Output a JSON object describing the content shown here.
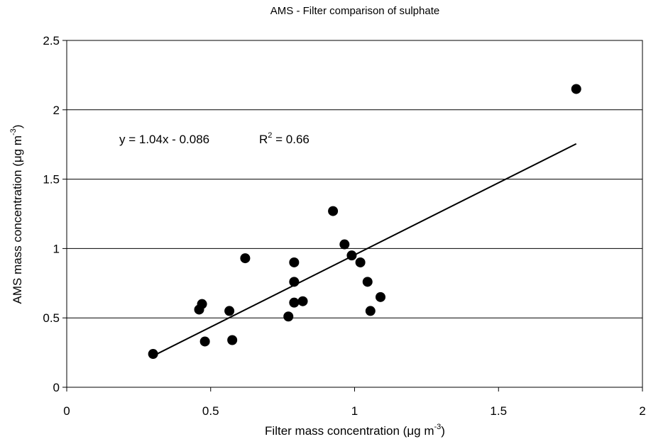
{
  "chart_data": {
    "type": "scatter",
    "title": "AMS - Filter  comparison of sulphate",
    "xlabel": {
      "prefix": "Filter mass concentration (",
      "unit": "μg m",
      "exponent": "-3",
      "suffix": ")"
    },
    "ylabel": {
      "prefix": "AMS mass concentration (",
      "unit": "μg m",
      "exponent": "-3",
      "suffix": ")"
    },
    "xlim": [
      0,
      2
    ],
    "ylim": [
      0,
      2.5
    ],
    "x_ticks": [
      0,
      0.5,
      1,
      1.5,
      2
    ],
    "x_tick_labels": [
      "0",
      "0.5",
      "1",
      "1.5",
      "2"
    ],
    "y_ticks": [
      0,
      0.5,
      1,
      1.5,
      2,
      2.5
    ],
    "y_tick_labels": [
      "0",
      "0.5",
      "1",
      "1.5",
      "2",
      "2.5"
    ],
    "grid": "horizontal",
    "points": [
      {
        "x": 0.3,
        "y": 0.24
      },
      {
        "x": 0.46,
        "y": 0.56
      },
      {
        "x": 0.47,
        "y": 0.6
      },
      {
        "x": 0.48,
        "y": 0.33
      },
      {
        "x": 0.565,
        "y": 0.55
      },
      {
        "x": 0.575,
        "y": 0.34
      },
      {
        "x": 0.62,
        "y": 0.93
      },
      {
        "x": 0.77,
        "y": 0.51
      },
      {
        "x": 0.79,
        "y": 0.9
      },
      {
        "x": 0.79,
        "y": 0.76
      },
      {
        "x": 0.79,
        "y": 0.61
      },
      {
        "x": 0.82,
        "y": 0.62
      },
      {
        "x": 0.925,
        "y": 1.27
      },
      {
        "x": 0.965,
        "y": 1.03
      },
      {
        "x": 0.99,
        "y": 0.95
      },
      {
        "x": 1.02,
        "y": 0.9
      },
      {
        "x": 1.045,
        "y": 0.76
      },
      {
        "x": 1.055,
        "y": 0.55
      },
      {
        "x": 1.09,
        "y": 0.65
      },
      {
        "x": 1.77,
        "y": 2.15
      }
    ],
    "trendline": {
      "slope": 1.04,
      "intercept": -0.086,
      "x_range": [
        0.3,
        1.77
      ]
    },
    "equation_text": "y = 1.04x - 0.086",
    "r2_text": {
      "prefix": "R",
      "exponent": "2",
      "suffix": " = 0.66"
    },
    "colors": {
      "points": "#000000",
      "line": "#000000",
      "grid": "#000000"
    }
  }
}
